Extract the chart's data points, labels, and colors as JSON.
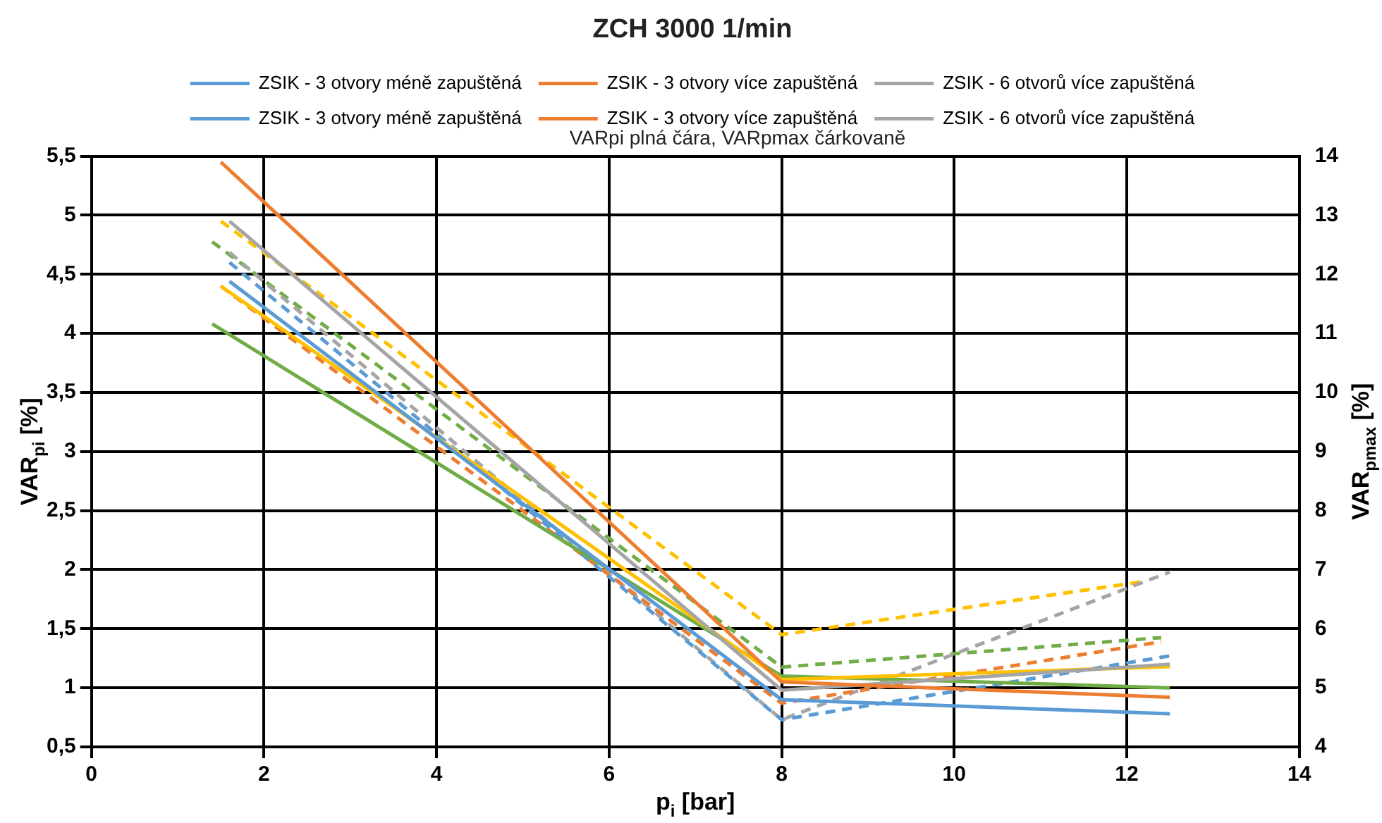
{
  "chart_data": {
    "type": "line",
    "title": "ZCH 3000 1/min",
    "xlabel": "p$_{i}$ [bar]",
    "ylabel": "VAR$_{pi}$ [%]",
    "y2label": "VAR$_{pmax}$ [%]",
    "annotations": [
      "VARpi plná čára, VARpmax čárkovaně"
    ],
    "xlim": [
      0,
      14
    ],
    "xticks": [
      0,
      2,
      4,
      6,
      8,
      10,
      12,
      14
    ],
    "ylim": [
      0.5,
      5.5
    ],
    "yticks": [
      {
        "value": 0.5,
        "label": "0,5"
      },
      1,
      {
        "value": 1.5,
        "label": "1,5"
      },
      2,
      {
        "value": 2.5,
        "label": "2,5"
      },
      3,
      {
        "value": 3.5,
        "label": "3,5"
      },
      4,
      {
        "value": 4.5,
        "label": "4,5"
      },
      5,
      {
        "value": 5.5,
        "label": "5,5"
      }
    ],
    "y2lim": [
      4,
      14
    ],
    "y2ticks": [
      4,
      5,
      6,
      7,
      8,
      9,
      10,
      11,
      12,
      13,
      14
    ],
    "grid": true,
    "legend": "top",
    "marker": "none",
    "series": [
      {
        "name": "ZSIK - 3 otvory méně zapuštěná",
        "color": "#5b9bd5",
        "line_style": "solid",
        "x": [
          1.6,
          8,
          12.5
        ],
        "values": [
          4.44,
          0.9,
          0.78
        ]
      },
      {
        "name": "ZSIK - 3 otvory více zapuštěná",
        "color": "#ed7d31",
        "line_style": "solid",
        "x": [
          1.5,
          8,
          12.5
        ],
        "values": [
          5.45,
          1.05,
          0.92
        ]
      },
      {
        "name": "ZSIK - 6 otvorů více zapuštěná",
        "color": "#a5a5a5",
        "line_style": "solid",
        "x": [
          1.6,
          8,
          12.5
        ],
        "values": [
          4.95,
          0.98,
          1.2
        ]
      },
      {
        "color": "#ffc000",
        "line_style": "solid",
        "x": [
          1.5,
          8,
          12.5
        ],
        "values": [
          4.4,
          1.07,
          1.18
        ]
      },
      {
        "color": "#70ad47",
        "line_style": "solid",
        "x": [
          1.4,
          8,
          12.5
        ],
        "values": [
          4.08,
          1.1,
          1.0
        ]
      },
      {
        "name": "ZSIK - 3 otvory méně zapuštěná",
        "color": "#5b9bd5",
        "line_style": "dashed",
        "axis": "y2",
        "x": [
          1.6,
          8,
          12.5
        ],
        "values": [
          12.2,
          4.46,
          5.54
        ]
      },
      {
        "name": "ZSIK - 3 otvory více zapuštěná",
        "color": "#ed7d31",
        "line_style": "dashed",
        "axis": "y2",
        "x": [
          1.5,
          8,
          12.4
        ],
        "values": [
          11.8,
          4.74,
          5.78
        ]
      },
      {
        "name": "ZSIK - 6 otvorů více zapuštěná",
        "color": "#a5a5a5",
        "line_style": "dashed",
        "axis": "y2",
        "x": [
          1.6,
          8,
          12.5
        ],
        "values": [
          12.37,
          4.46,
          6.96
        ]
      },
      {
        "color": "#ffc000",
        "line_style": "dashed",
        "axis": "y2",
        "x": [
          1.5,
          8,
          12.2
        ],
        "values": [
          12.9,
          5.9,
          6.8
        ]
      },
      {
        "color": "#70ad47",
        "line_style": "dashed",
        "axis": "y2",
        "x": [
          1.4,
          8,
          12.4
        ],
        "values": [
          12.55,
          5.35,
          5.85
        ]
      }
    ]
  }
}
